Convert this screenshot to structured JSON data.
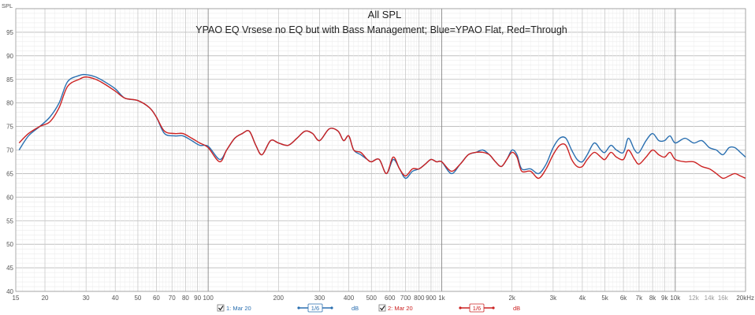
{
  "chart_data": {
    "type": "line",
    "title": "All SPL",
    "subtitle": "YPAO EQ Vrsese no EQ but with Bass Management; Blue=YPAO Flat, Red=Through",
    "ylabel": "SPL",
    "xlabel": "",
    "x_scale": "log",
    "xlim": [
      15,
      20000
    ],
    "ylim": [
      40,
      100
    ],
    "y_ticks": [
      40,
      45,
      50,
      55,
      60,
      65,
      70,
      75,
      80,
      85,
      90,
      95
    ],
    "x_tick_labels": [
      {
        "f": 15,
        "label": "15"
      },
      {
        "f": 20,
        "label": "20"
      },
      {
        "f": 30,
        "label": "30"
      },
      {
        "f": 40,
        "label": "40"
      },
      {
        "f": 50,
        "label": "50"
      },
      {
        "f": 60,
        "label": "60"
      },
      {
        "f": 70,
        "label": "70"
      },
      {
        "f": 80,
        "label": "80"
      },
      {
        "f": 90,
        "label": "90"
      },
      {
        "f": 100,
        "label": "100"
      },
      {
        "f": 200,
        "label": "200"
      },
      {
        "f": 300,
        "label": "300"
      },
      {
        "f": 400,
        "label": "400"
      },
      {
        "f": 500,
        "label": "500"
      },
      {
        "f": 600,
        "label": "600"
      },
      {
        "f": 700,
        "label": "700"
      },
      {
        "f": 800,
        "label": "800"
      },
      {
        "f": 900,
        "label": "900"
      },
      {
        "f": 1000,
        "label": "1k"
      },
      {
        "f": 2000,
        "label": "2k"
      },
      {
        "f": 3000,
        "label": "3k"
      },
      {
        "f": 4000,
        "label": "4k"
      },
      {
        "f": 5000,
        "label": "5k"
      },
      {
        "f": 6000,
        "label": "6k"
      },
      {
        "f": 7000,
        "label": "7k"
      },
      {
        "f": 8000,
        "label": "8k"
      },
      {
        "f": 9000,
        "label": "9k"
      },
      {
        "f": 10000,
        "label": "10k"
      },
      {
        "f": 12000,
        "label": "12k"
      },
      {
        "f": 14000,
        "label": "14k"
      },
      {
        "f": 16000,
        "label": "16k"
      },
      {
        "f": 20000,
        "label": "20kHz"
      }
    ],
    "grid": true,
    "series": [
      {
        "name": "1: Mar 20",
        "color": "#2a6fb0",
        "points": [
          [
            15.5,
            70
          ],
          [
            17,
            73
          ],
          [
            19,
            75
          ],
          [
            21,
            77
          ],
          [
            23,
            80
          ],
          [
            25,
            84.5
          ],
          [
            28,
            85.8
          ],
          [
            30,
            86
          ],
          [
            33,
            85.5
          ],
          [
            36,
            84.5
          ],
          [
            40,
            83
          ],
          [
            44,
            81
          ],
          [
            50,
            80.5
          ],
          [
            56,
            79
          ],
          [
            60,
            77
          ],
          [
            65,
            73.5
          ],
          [
            72,
            73
          ],
          [
            78,
            73
          ],
          [
            85,
            72
          ],
          [
            92,
            71
          ],
          [
            100,
            70.8
          ],
          [
            112,
            68
          ],
          [
            120,
            70
          ],
          [
            130,
            72.5
          ],
          [
            140,
            73.5
          ],
          [
            150,
            74
          ],
          [
            160,
            71
          ],
          [
            170,
            69
          ],
          [
            185,
            72
          ],
          [
            200,
            71.5
          ],
          [
            220,
            71
          ],
          [
            240,
            72.5
          ],
          [
            260,
            74
          ],
          [
            280,
            73.5
          ],
          [
            300,
            72
          ],
          [
            330,
            74.5
          ],
          [
            360,
            74
          ],
          [
            380,
            72
          ],
          [
            400,
            73
          ],
          [
            420,
            70
          ],
          [
            450,
            69
          ],
          [
            480,
            68
          ],
          [
            500,
            67.5
          ],
          [
            540,
            68
          ],
          [
            580,
            65
          ],
          [
            620,
            68
          ],
          [
            660,
            66
          ],
          [
            700,
            64
          ],
          [
            750,
            65.5
          ],
          [
            800,
            66
          ],
          [
            850,
            67
          ],
          [
            900,
            68
          ],
          [
            950,
            67.5
          ],
          [
            1000,
            67.5
          ],
          [
            1100,
            65
          ],
          [
            1200,
            67
          ],
          [
            1300,
            69
          ],
          [
            1400,
            69.5
          ],
          [
            1500,
            70
          ],
          [
            1600,
            69
          ],
          [
            1700,
            67.5
          ],
          [
            1800,
            66.5
          ],
          [
            1900,
            68
          ],
          [
            2000,
            70
          ],
          [
            2100,
            69
          ],
          [
            2200,
            66
          ],
          [
            2400,
            66
          ],
          [
            2600,
            65
          ],
          [
            2800,
            67
          ],
          [
            3000,
            70.5
          ],
          [
            3200,
            72.5
          ],
          [
            3400,
            72.5
          ],
          [
            3600,
            70
          ],
          [
            3800,
            68
          ],
          [
            4000,
            67.5
          ],
          [
            4200,
            69
          ],
          [
            4500,
            71.5
          ],
          [
            4800,
            70
          ],
          [
            5000,
            69.5
          ],
          [
            5300,
            71
          ],
          [
            5600,
            70
          ],
          [
            6000,
            69.5
          ],
          [
            6300,
            72.5
          ],
          [
            6700,
            70
          ],
          [
            7000,
            69.5
          ],
          [
            7500,
            72
          ],
          [
            8000,
            73.5
          ],
          [
            8500,
            72
          ],
          [
            9000,
            72
          ],
          [
            9500,
            73
          ],
          [
            10000,
            71.5
          ],
          [
            11000,
            72.5
          ],
          [
            12000,
            71.5
          ],
          [
            13000,
            72
          ],
          [
            14000,
            70.5
          ],
          [
            15000,
            70
          ],
          [
            16000,
            69
          ],
          [
            17000,
            70.5
          ],
          [
            18000,
            70.5
          ],
          [
            19000,
            69.5
          ],
          [
            20000,
            68.5
          ]
        ]
      },
      {
        "name": "2: Mar 20",
        "color": "#cc2222",
        "points": [
          [
            15.5,
            71.5
          ],
          [
            17,
            73.5
          ],
          [
            19,
            75
          ],
          [
            21,
            76
          ],
          [
            23,
            79
          ],
          [
            25,
            83.5
          ],
          [
            28,
            85
          ],
          [
            30,
            85.5
          ],
          [
            33,
            85
          ],
          [
            36,
            84
          ],
          [
            40,
            82.5
          ],
          [
            44,
            81
          ],
          [
            50,
            80.5
          ],
          [
            56,
            79
          ],
          [
            60,
            77
          ],
          [
            65,
            74
          ],
          [
            72,
            73.5
          ],
          [
            78,
            73.5
          ],
          [
            85,
            72.5
          ],
          [
            92,
            71.5
          ],
          [
            100,
            70.5
          ],
          [
            112,
            67.5
          ],
          [
            120,
            70
          ],
          [
            130,
            72.5
          ],
          [
            140,
            73.5
          ],
          [
            150,
            74
          ],
          [
            160,
            71
          ],
          [
            170,
            69
          ],
          [
            185,
            72
          ],
          [
            200,
            71.5
          ],
          [
            220,
            71
          ],
          [
            240,
            72.5
          ],
          [
            260,
            74
          ],
          [
            280,
            73.5
          ],
          [
            300,
            72
          ],
          [
            330,
            74.5
          ],
          [
            360,
            74
          ],
          [
            380,
            72
          ],
          [
            400,
            73
          ],
          [
            420,
            70
          ],
          [
            450,
            69.5
          ],
          [
            480,
            68
          ],
          [
            500,
            67.5
          ],
          [
            540,
            68
          ],
          [
            580,
            65
          ],
          [
            620,
            68.5
          ],
          [
            660,
            66
          ],
          [
            700,
            64.5
          ],
          [
            750,
            66
          ],
          [
            800,
            66
          ],
          [
            850,
            67
          ],
          [
            900,
            68
          ],
          [
            950,
            67.5
          ],
          [
            1000,
            67.5
          ],
          [
            1100,
            65.5
          ],
          [
            1200,
            67
          ],
          [
            1300,
            69
          ],
          [
            1400,
            69.5
          ],
          [
            1500,
            69.5
          ],
          [
            1600,
            69
          ],
          [
            1700,
            67.5
          ],
          [
            1800,
            66.5
          ],
          [
            1900,
            68
          ],
          [
            2000,
            69.5
          ],
          [
            2100,
            68.5
          ],
          [
            2200,
            65.5
          ],
          [
            2400,
            65.5
          ],
          [
            2600,
            64
          ],
          [
            2800,
            66
          ],
          [
            3000,
            69
          ],
          [
            3200,
            71
          ],
          [
            3400,
            71
          ],
          [
            3600,
            68
          ],
          [
            3800,
            66.5
          ],
          [
            4000,
            66.5
          ],
          [
            4200,
            68
          ],
          [
            4500,
            69.5
          ],
          [
            4800,
            68.5
          ],
          [
            5000,
            68
          ],
          [
            5300,
            69.5
          ],
          [
            5600,
            68.5
          ],
          [
            6000,
            68
          ],
          [
            6300,
            70
          ],
          [
            6700,
            68
          ],
          [
            7000,
            67
          ],
          [
            7500,
            68.5
          ],
          [
            8000,
            70
          ],
          [
            8500,
            69
          ],
          [
            9000,
            68.5
          ],
          [
            9500,
            69.5
          ],
          [
            10000,
            68
          ],
          [
            11000,
            67.5
          ],
          [
            12000,
            67.5
          ],
          [
            13000,
            66.5
          ],
          [
            14000,
            66
          ],
          [
            15000,
            65
          ],
          [
            16000,
            64
          ],
          [
            17000,
            64.5
          ],
          [
            18000,
            65
          ],
          [
            19000,
            64.5
          ],
          [
            20000,
            64
          ]
        ]
      }
    ],
    "legend": {
      "placement": "bottom",
      "items": [
        {
          "name": "1: Mar 20",
          "checked": true,
          "smoothing": "1/6",
          "unit": "dB",
          "color": "#2a6fb0"
        },
        {
          "name": "2: Mar 20",
          "checked": true,
          "smoothing": "1/6",
          "unit": "dB",
          "color": "#cc2222"
        }
      ]
    }
  }
}
